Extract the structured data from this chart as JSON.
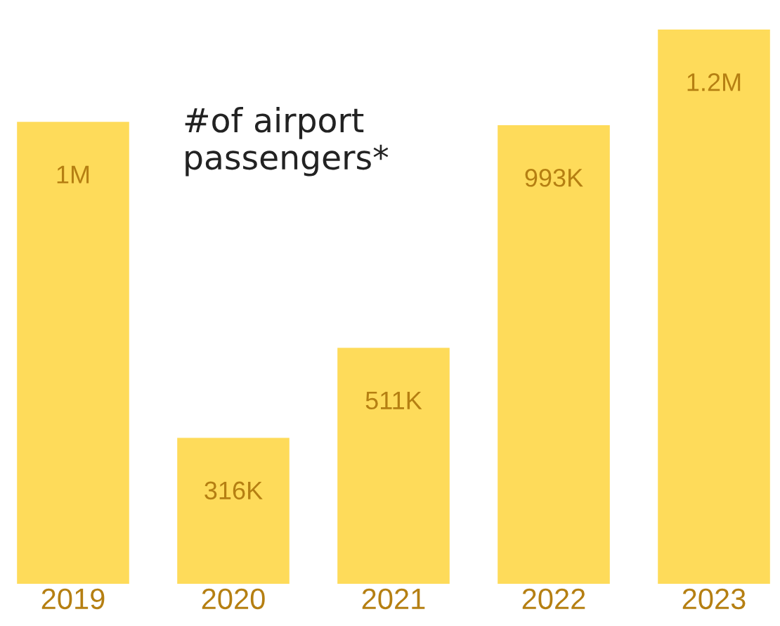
{
  "chart_data": {
    "type": "bar",
    "title": "#of airport\npassengers*",
    "categories": [
      "2019",
      "2020",
      "2021",
      "2022",
      "2023"
    ],
    "values": [
      1000000,
      316000,
      511000,
      993000,
      1200000
    ],
    "value_labels": [
      "1M",
      "316K",
      "511K",
      "993K",
      "1.2M"
    ],
    "color": "#fedb5a",
    "tick_labels": "x"
  }
}
